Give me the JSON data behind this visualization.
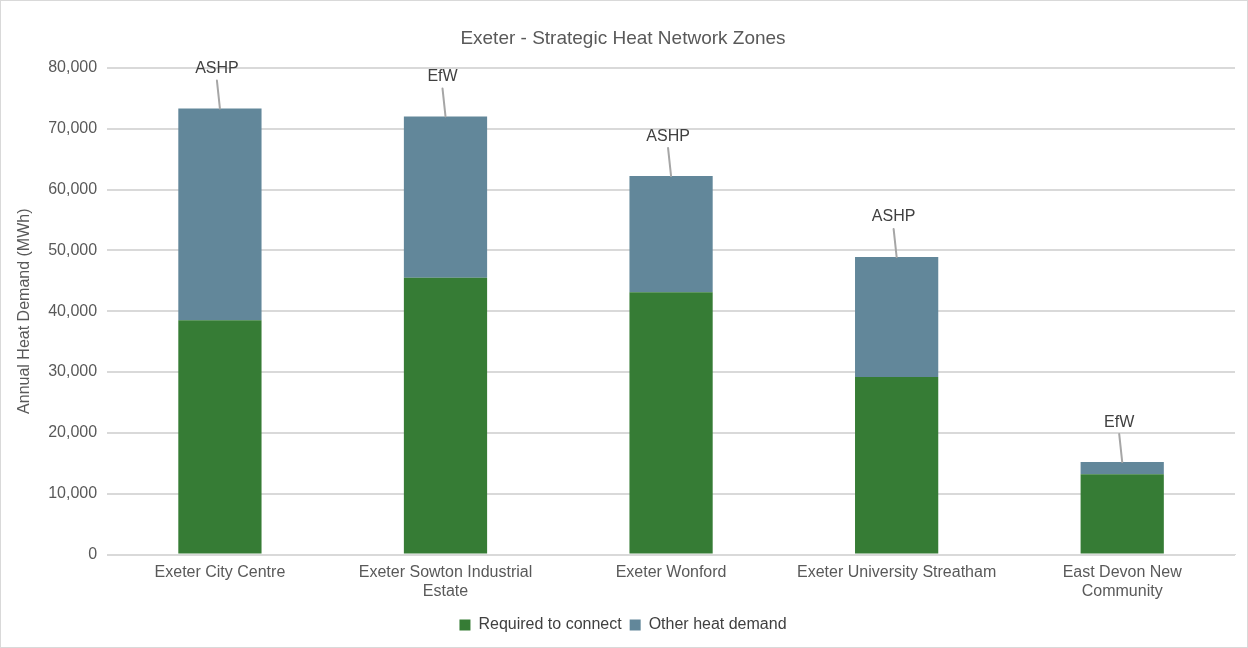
{
  "chart_data": {
    "type": "bar",
    "title": "Exeter - Strategic Heat Network Zones",
    "ylabel": "Annual Heat Demand (MWh)",
    "categories": [
      "Exeter City Centre",
      "Exeter Sowton Industrial Estate",
      "Exeter Wonford",
      "Exeter University Streatham",
      "East Devon New Community"
    ],
    "series": [
      {
        "name": "Required to connect",
        "color": "#367c35",
        "values": [
          38500,
          45500,
          43100,
          29200,
          13200
        ]
      },
      {
        "name": "Other heat demand",
        "color": "#62879a",
        "values": [
          34800,
          26500,
          19100,
          19700,
          2000
        ]
      }
    ],
    "stacked": true,
    "ylim": [
      0,
      80000
    ],
    "yticks": [
      0,
      {
        "value": 10000,
        "label": "10,000"
      },
      {
        "value": 20000,
        "label": "20,000"
      },
      {
        "value": 30000,
        "label": "30,000"
      },
      {
        "value": 40000,
        "label": "40,000"
      },
      {
        "value": 50000,
        "label": "50,000"
      },
      {
        "value": 60000,
        "label": "60,000"
      },
      {
        "value": 70000,
        "label": "70,000"
      },
      {
        "value": 80000,
        "label": "80,000"
      }
    ],
    "grid": "y",
    "legend": "bottom",
    "annotations": [
      {
        "text": "ASHP",
        "x": "Exeter City Centre",
        "y": 73300
      },
      {
        "text": "EfW",
        "x": "Exeter Sowton Industrial Estate",
        "y": 72000
      },
      {
        "text": "ASHP",
        "x": "Exeter Wonford",
        "y": 62200
      },
      {
        "text": "ASHP",
        "x": "Exeter University Streatham",
        "y": 48900
      },
      {
        "text": "EfW",
        "x": "East Devon New Community",
        "y": 15200
      }
    ]
  }
}
